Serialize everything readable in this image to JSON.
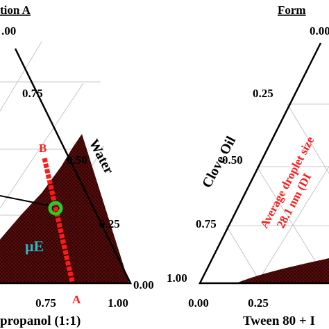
{
  "left_panel": {
    "title": "tion A",
    "apex_label": ".00",
    "side_ticks": [
      "0.75",
      "0.50",
      "0.25",
      "0.00"
    ],
    "side_title": "Water",
    "bottom_ticks": [
      "0.75",
      "1.00"
    ],
    "bottom_title": "propanol (1:1)",
    "point_labels": [
      "B",
      "A"
    ],
    "region_label": "μE"
  },
  "right_panel": {
    "title": "Form",
    "side_ticks": [
      "0.00",
      "0.25",
      "0.50",
      "0.75",
      "1.00"
    ],
    "side_title": "Clove Oil",
    "annotation": [
      "Average droplet size",
      "28.1 nm (DI"
    ],
    "bottom_ticks": [
      "0.00",
      "0.25"
    ],
    "bottom_title": "Tween 80 + I"
  }
}
